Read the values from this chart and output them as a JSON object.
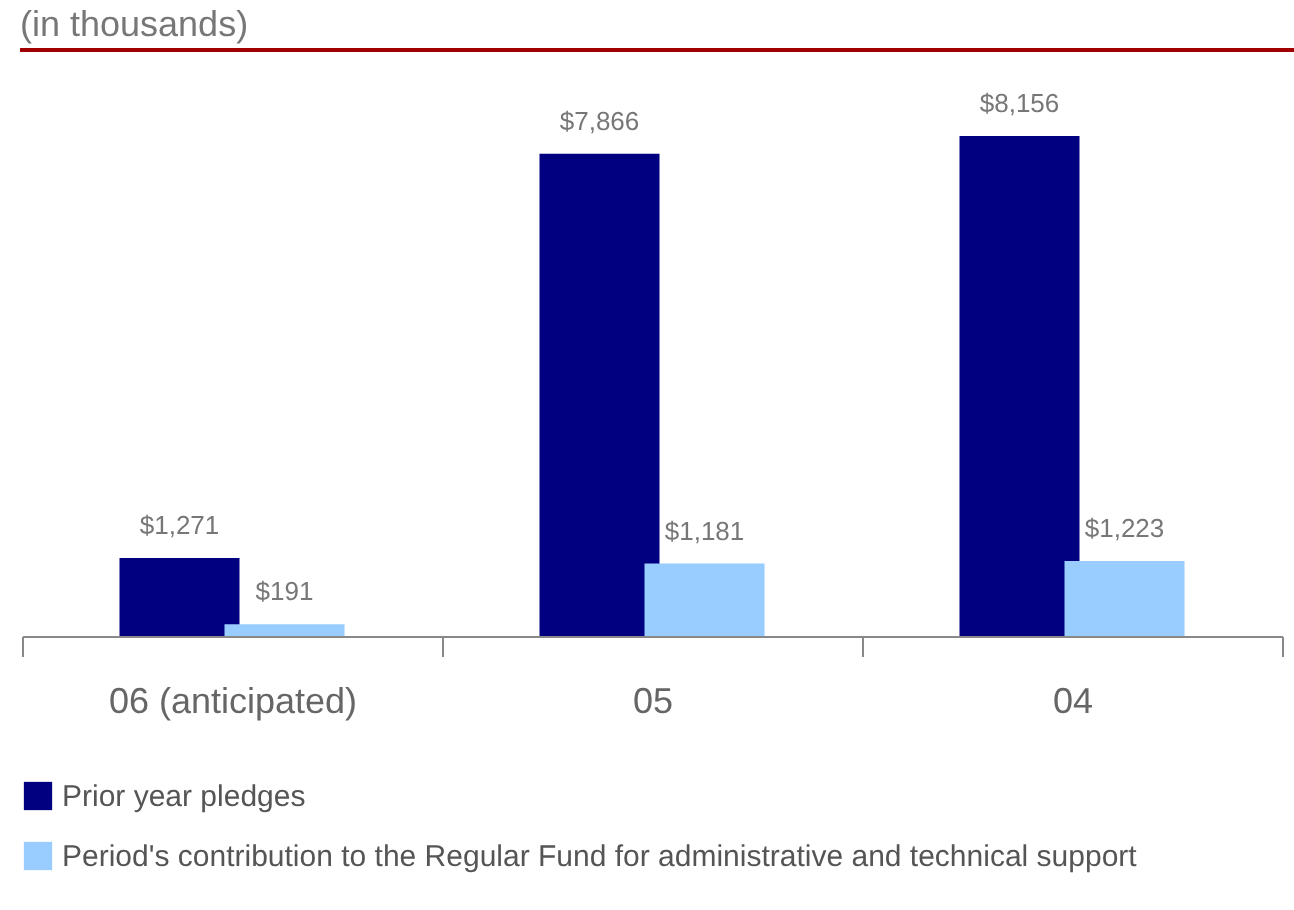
{
  "chart_data": {
    "type": "bar",
    "subtitle": "(in thousands)",
    "categories": [
      "06 (anticipated)",
      "05",
      "04"
    ],
    "series": [
      {
        "name": "Prior year pledges",
        "color": "#000080",
        "values": [
          1271,
          7866,
          8156
        ],
        "value_labels": [
          "$1,271",
          "$7,866",
          "$8,156"
        ]
      },
      {
        "name": "Period's contribution to the Regular Fund for administrative and technical support",
        "color": "#99ccff",
        "values": [
          191,
          1181,
          1223
        ],
        "value_labels": [
          "$191",
          "$1,181",
          "$1,223"
        ]
      }
    ],
    "legend": "bottom"
  }
}
